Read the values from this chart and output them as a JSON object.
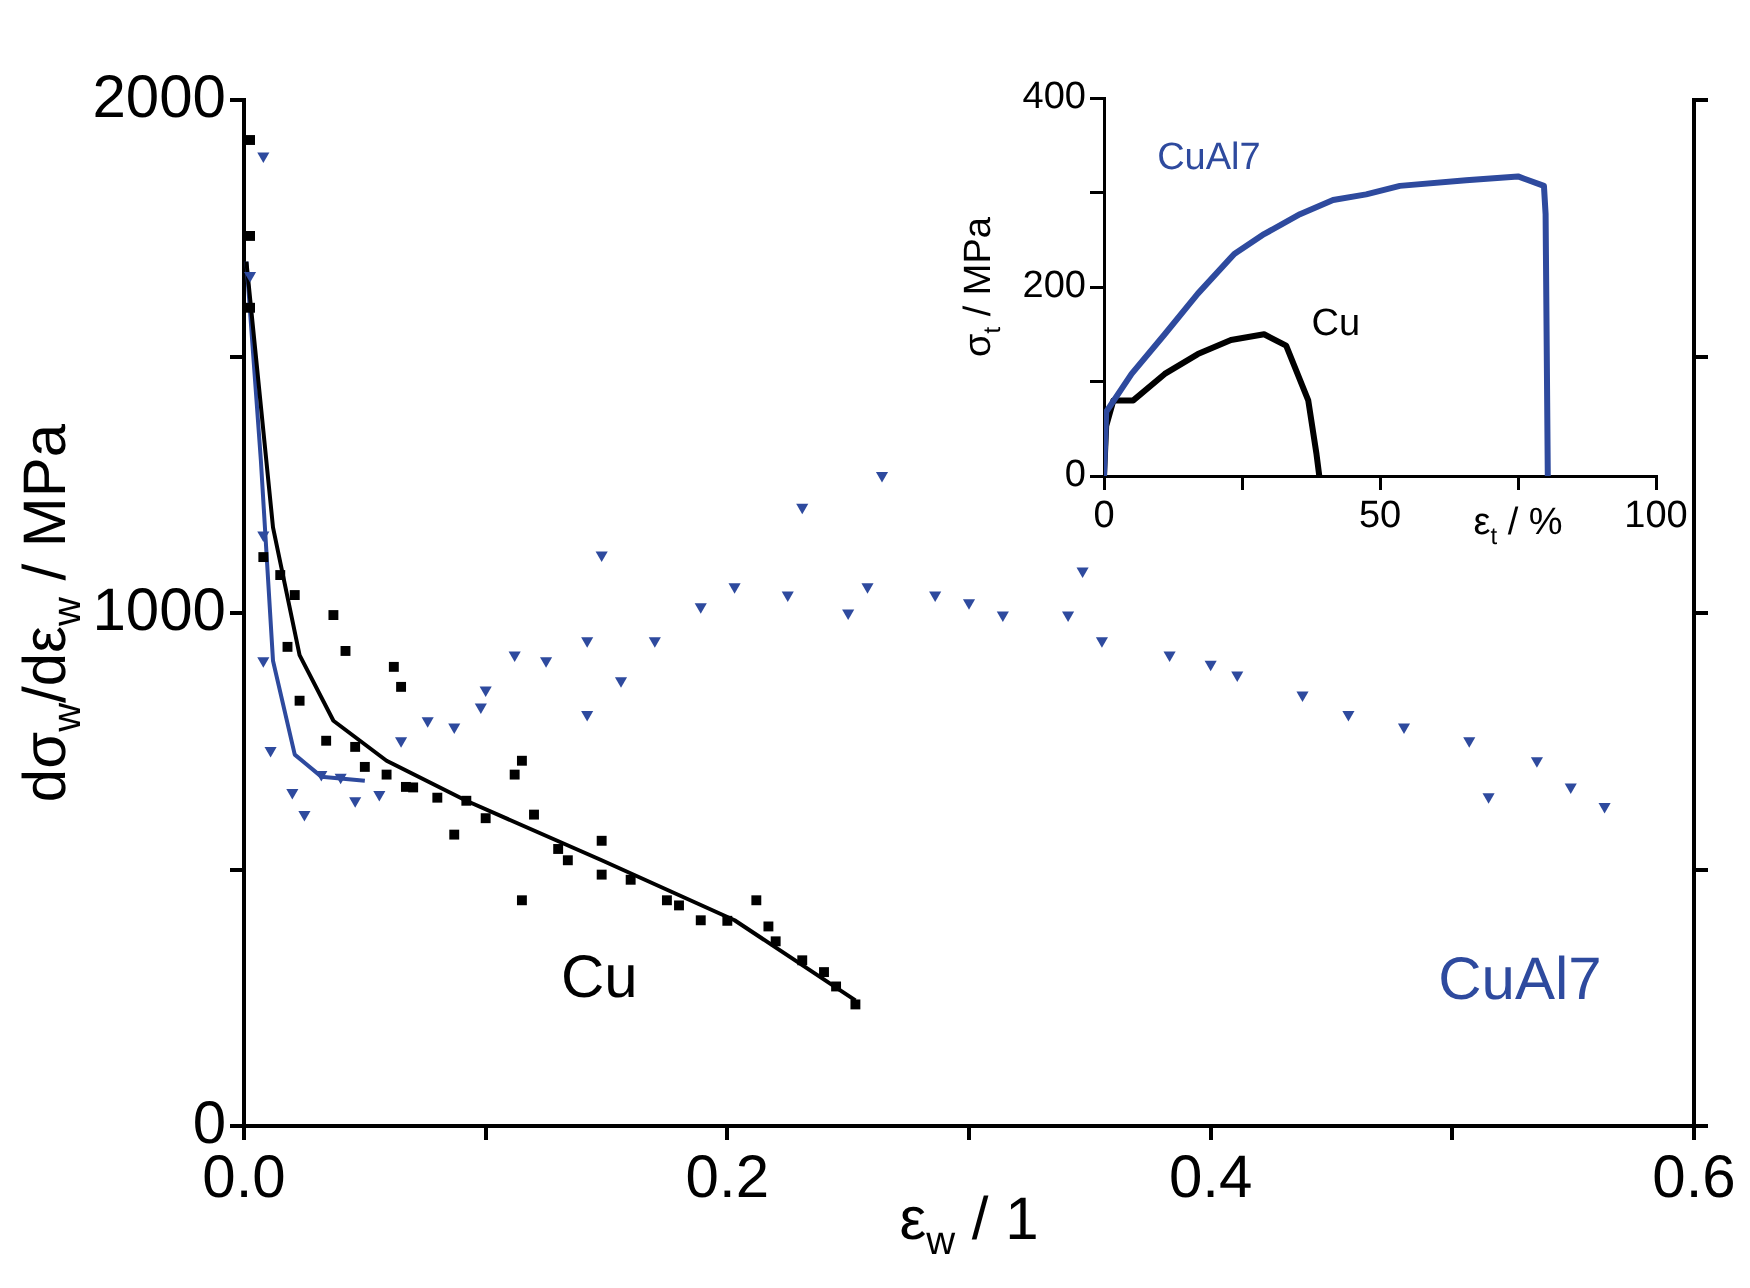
{
  "chart_data": [
    {
      "type": "scatter",
      "xlabel": "ε$_{w}$ / 1",
      "ylabel": "dσ$_{w}$/dε$_{w}$ / MPa",
      "xlim": [
        0,
        0.6
      ],
      "ylim": [
        0,
        2000
      ],
      "xticks": [
        {
          "value": 0,
          "label": "0.0"
        },
        {
          "value": 0.1,
          "label": null
        },
        0.2,
        {
          "value": 0.3,
          "label": null
        },
        0.4,
        {
          "value": 0.5,
          "label": null
        },
        0.6
      ],
      "yticks": [
        0,
        {
          "value": 500,
          "label": null
        },
        1000,
        {
          "value": 1500,
          "label": null
        },
        2000
      ],
      "grid": false,
      "series": [
        {
          "name": "Cu",
          "marker": "square",
          "color": "#000000",
          "x": [
            0.0025,
            0.0025,
            0.0025,
            0.008,
            0.015,
            0.021,
            0.018,
            0.037,
            0.023,
            0.042,
            0.034,
            0.062,
            0.065,
            0.046,
            0.059,
            0.067,
            0.092,
            0.115,
            0.112,
            0.087,
            0.12,
            0.134,
            0.148,
            0.115,
            0.148,
            0.175,
            0.189,
            0.212,
            0.217,
            0.231,
            0.245,
            0.253,
            0.08,
            0.1,
            0.13,
            0.16,
            0.18,
            0.2,
            0.22,
            0.24,
            0.05,
            0.07
          ],
          "values": [
            1922,
            1735,
            1595,
            1109,
            1074,
            1035,
            934,
            996,
            829,
            926,
            751,
            895,
            856,
            739,
            685,
            661,
            634,
            712,
            685,
            568,
            607,
            518,
            556,
            440,
            490,
            440,
            401,
            440,
            389,
            323,
            272,
            237,
            640,
            600,
            540,
            480,
            430,
            400,
            360,
            300,
            700,
            660
          ]
        },
        {
          "name": "CuAl7",
          "marker": "triangle",
          "color": "#2e4a9e",
          "x": [
            0.008,
            0.0025,
            0.008,
            0.008,
            0.011,
            0.025,
            0.032,
            0.046,
            0.056,
            0.065,
            0.076,
            0.087,
            0.098,
            0.112,
            0.125,
            0.142,
            0.148,
            0.142,
            0.156,
            0.17,
            0.189,
            0.203,
            0.231,
            0.225,
            0.258,
            0.264,
            0.286,
            0.314,
            0.341,
            0.347,
            0.355,
            0.383,
            0.411,
            0.438,
            0.457,
            0.48,
            0.507,
            0.515,
            0.535,
            0.549,
            0.563,
            0.02,
            0.04,
            0.1,
            0.3,
            0.25,
            0.4
          ],
          "values": [
            1891,
            1658,
            1152,
            907,
            732,
            607,
            685,
            634,
            646,
            751,
            790,
            778,
            817,
            918,
            907,
            946,
            1113,
            802,
            868,
            946,
            1012,
            1051,
            1206,
            1035,
            1051,
            1268,
            1035,
            996,
            996,
            1082,
            946,
            918,
            879,
            840,
            802,
            778,
            751,
            642,
            712,
            661,
            623,
            650,
            680,
            850,
            1020,
            1000,
            900
          ]
        },
        {
          "type": "line",
          "marker": "none",
          "color": "#000000",
          "x": [
            0.001,
            0.012,
            0.023,
            0.037,
            0.059,
            0.092,
            0.148,
            0.203,
            0.253
          ],
          "values": [
            1685,
            1167,
            918,
            790,
            712,
            634,
            518,
            401,
            245
          ]
        },
        {
          "type": "line",
          "marker": "none",
          "color": "#2e4a9e",
          "x": [
            0.001,
            0.007,
            0.012,
            0.021,
            0.032,
            0.05
          ],
          "values": [
            1685,
            1296,
            907,
            724,
            681,
            673
          ]
        }
      ]
    },
    {
      "type": "line",
      "xlabel": "ε$_{t}$ / %",
      "ylabel": "σ$_{t}$ / MPa",
      "xlim": [
        0,
        100
      ],
      "ylim": [
        0,
        400
      ],
      "xticks": [
        0,
        {
          "value": 25,
          "label": null
        },
        50,
        {
          "value": 75,
          "label": null
        },
        100
      ],
      "yticks": [
        0,
        {
          "value": 100,
          "label": null
        },
        200,
        {
          "value": 300,
          "label": null
        },
        400
      ],
      "grid": false,
      "marker": "none",
      "series": [
        {
          "name": "CuAl7",
          "color": "#2e4a9e",
          "x": [
            0,
            0.4,
            5,
            11,
            17,
            23.6,
            29,
            35.5,
            41.5,
            47.5,
            53.6,
            65.6,
            75,
            79.7,
            80,
            80.4
          ],
          "values": [
            0,
            68,
            108,
            150,
            193,
            235,
            256,
            277,
            292,
            298,
            307,
            313,
            317,
            307,
            277,
            0
          ]
        },
        {
          "name": "Cu",
          "color": "#000000",
          "x": [
            0,
            0.4,
            1.7,
            5.3,
            11,
            17,
            23,
            29,
            33,
            37,
            38.5,
            39
          ],
          "values": [
            0,
            53,
            80,
            80,
            108,
            129,
            144,
            150,
            138,
            80,
            23,
            0
          ]
        }
      ]
    }
  ]
}
